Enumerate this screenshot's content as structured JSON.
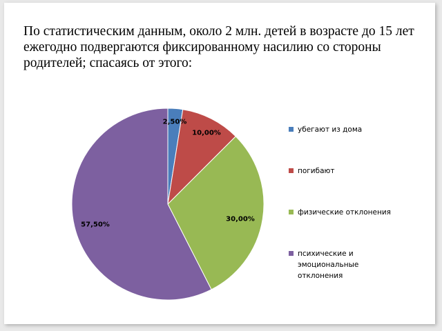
{
  "title": "По статистическим данным, около 2 млн. детей в возрасте до 15 лет ежегодно подвергаются фиксированному насилию со стороны родителей; спасаясь от этого:",
  "chart_data": {
    "type": "pie",
    "categories": [
      "убегают из дома",
      "погибают",
      "физические отклонения",
      "психические и эмоциональные отклонения"
    ],
    "values": [
      2.5,
      10,
      30,
      57.5
    ],
    "data_labels": [
      "2,50%",
      "10,00%",
      "30,00%",
      "57,50%"
    ],
    "colors": [
      "#4a7ebb",
      "#be4b48",
      "#98b954",
      "#7d60a0"
    ],
    "legend_position": "right",
    "start_angle": "12 o'clock, clockwise"
  }
}
